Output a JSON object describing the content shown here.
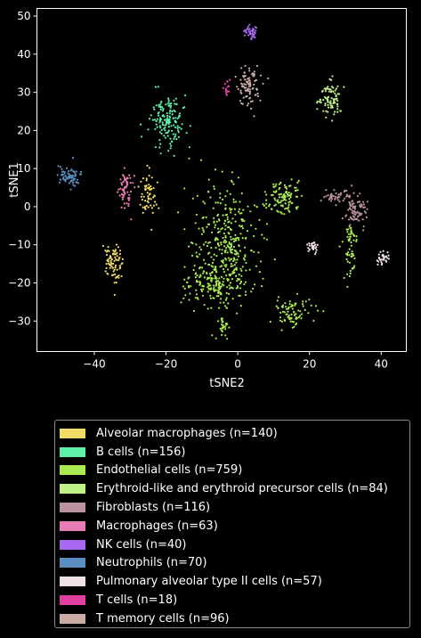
{
  "chart_data": {
    "type": "scatter",
    "xlabel": "tSNE2",
    "ylabel": "tSNE1",
    "xlim": [
      -56,
      47
    ],
    "ylim": [
      -38,
      52
    ],
    "xticks": [
      -40,
      -20,
      0,
      20,
      40
    ],
    "yticks": [
      -30,
      -20,
      -10,
      0,
      10,
      20,
      30,
      40,
      50
    ],
    "grid": false,
    "legend_position": "bottom",
    "series": [
      {
        "name": "Alveolar macrophages (n=140)",
        "color": "#f0dc64",
        "clusters": [
          {
            "cx": -35,
            "cy": -15,
            "sx": 1.3,
            "sy": 2.8,
            "n": 80
          },
          {
            "cx": -25,
            "cy": 3,
            "sx": 1.0,
            "sy": 2.5,
            "n": 60
          }
        ]
      },
      {
        "name": "B cells (n=156)",
        "color": "#5fefa6",
        "clusters": [
          {
            "cx": -19.5,
            "cy": 23,
            "sx": 2.5,
            "sy": 3.3,
            "n": 156
          }
        ]
      },
      {
        "name": "Endothelial cells (n=759)",
        "color": "#a8ea50",
        "clusters": [
          {
            "cx": -3,
            "cy": -10,
            "sx": 4.5,
            "sy": 7,
            "n": 320
          },
          {
            "cx": -6,
            "cy": -20,
            "sx": 5,
            "sy": 3.2,
            "n": 160
          },
          {
            "cx": 15.5,
            "cy": -28,
            "sx": 2.8,
            "sy": 2,
            "n": 80
          },
          {
            "cx": 12.5,
            "cy": 2.5,
            "sx": 2.4,
            "sy": 2.3,
            "n": 110
          },
          {
            "cx": 31.5,
            "cy": -13,
            "sx": 0.9,
            "sy": 3,
            "n": 40
          },
          {
            "cx": 31.5,
            "cy": -7,
            "sx": 0.6,
            "sy": 1.5,
            "n": 20
          },
          {
            "cx": -4.5,
            "cy": -32,
            "sx": 0.8,
            "sy": 1.1,
            "n": 29
          }
        ]
      },
      {
        "name": "Erythroid-like and erythroid precursor cells (n=84)",
        "color": "#c0f088",
        "clusters": [
          {
            "cx": 26,
            "cy": 28.5,
            "sx": 1.4,
            "sy": 2.2,
            "n": 84
          }
        ]
      },
      {
        "name": "Fibroblasts (n=116)",
        "color": "#bc91a2",
        "clusters": [
          {
            "cx": 27.5,
            "cy": 2.5,
            "sx": 2.2,
            "sy": 1,
            "n": 40
          },
          {
            "cx": 33,
            "cy": -0.5,
            "sx": 1.6,
            "sy": 2.3,
            "n": 76
          }
        ]
      },
      {
        "name": "Macrophages (n=63)",
        "color": "#e87cb4",
        "clusters": [
          {
            "cx": -31.5,
            "cy": 5,
            "sx": 0.9,
            "sy": 2.5,
            "n": 63
          }
        ]
      },
      {
        "name": "NK cells (n=40)",
        "color": "#a868f0",
        "clusters": [
          {
            "cx": 3.5,
            "cy": 45.8,
            "sx": 0.9,
            "sy": 0.9,
            "n": 40
          }
        ]
      },
      {
        "name": "Neutrophils (n=70)",
        "color": "#5a8ec0",
        "clusters": [
          {
            "cx": -47,
            "cy": 8,
            "sx": 1.5,
            "sy": 1.4,
            "n": 70
          }
        ]
      },
      {
        "name": "Pulmonary alveolar type II cells (n=57)",
        "color": "#eedfe2",
        "clusters": [
          {
            "cx": 40.5,
            "cy": -13.5,
            "sx": 1.2,
            "sy": 0.9,
            "n": 30
          },
          {
            "cx": 21,
            "cy": -10.5,
            "sx": 0.8,
            "sy": 0.8,
            "n": 27
          }
        ]
      },
      {
        "name": "T cells (n=18)",
        "color": "#e040a0",
        "clusters": [
          {
            "cx": -3,
            "cy": 31,
            "sx": 0.4,
            "sy": 1.2,
            "n": 18
          }
        ]
      },
      {
        "name": "T memory cells (n=96)",
        "color": "#c8aca4",
        "clusters": [
          {
            "cx": 3,
            "cy": 32,
            "sx": 1.6,
            "sy": 2.4,
            "n": 96
          }
        ]
      }
    ]
  }
}
